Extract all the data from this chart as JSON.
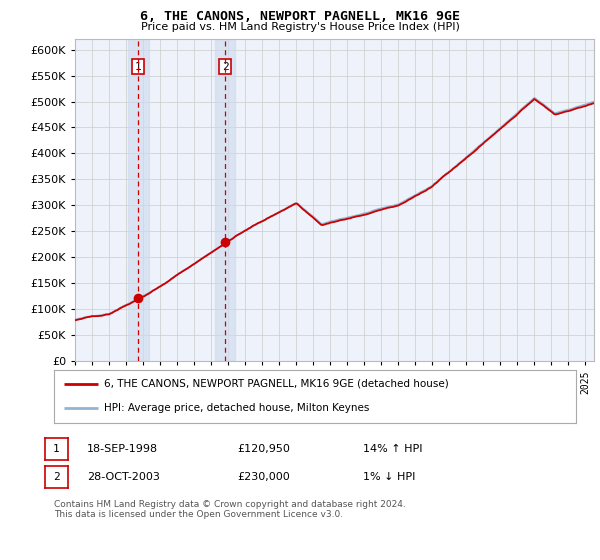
{
  "title": "6, THE CANONS, NEWPORT PAGNELL, MK16 9GE",
  "subtitle": "Price paid vs. HM Land Registry's House Price Index (HPI)",
  "legend_line1": "6, THE CANONS, NEWPORT PAGNELL, MK16 9GE (detached house)",
  "legend_line2": "HPI: Average price, detached house, Milton Keynes",
  "sale1_date": "18-SEP-1998",
  "sale1_price": "£120,950",
  "sale1_hpi": "14% ↑ HPI",
  "sale2_date": "28-OCT-2003",
  "sale2_price": "£230,000",
  "sale2_hpi": "1% ↓ HPI",
  "footnote": "Contains HM Land Registry data © Crown copyright and database right 2024.\nThis data is licensed under the Open Government Licence v3.0.",
  "ylim": [
    0,
    620000
  ],
  "yticks": [
    0,
    50000,
    100000,
    150000,
    200000,
    250000,
    300000,
    350000,
    400000,
    450000,
    500000,
    550000,
    600000
  ],
  "hpi_color": "#92b4d4",
  "price_color": "#cc0000",
  "sale1_x": 1998.72,
  "sale2_x": 2003.83,
  "plot_bg": "#eef2fa",
  "grid_color": "#cccccc",
  "sale1_dot_price": 120950,
  "sale2_dot_price": 230000,
  "vspan_color": "#cddaee",
  "xlim_left": 1995.0,
  "xlim_right": 2025.5
}
